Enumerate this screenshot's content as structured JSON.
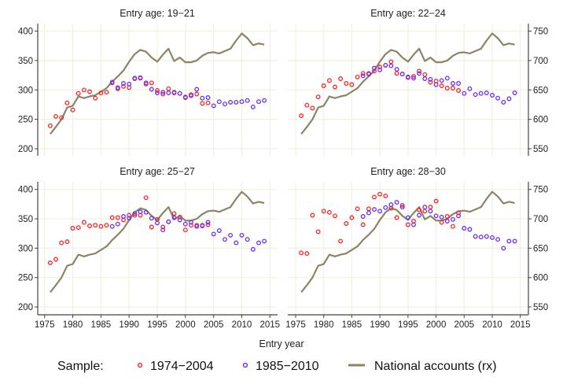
{
  "chart_data": {
    "type": "scatter",
    "xlabel": "Entry year",
    "legend": {
      "position": "bottom",
      "title": "Sample:",
      "entries": [
        {
          "label": "1974−2004",
          "kind": "marker",
          "color": "#ff2222"
        },
        {
          "label": "1985−2010",
          "kind": "marker",
          "color": "#6a2bff"
        },
        {
          "label": "National accounts (rx)",
          "kind": "line",
          "color": "#8b8467"
        }
      ]
    },
    "colors": {
      "sample_1974_2004": "#ff2222",
      "sample_1985_2010": "#6a2bff",
      "national_accounts": "#8b8467"
    },
    "x_ticks": [
      1975,
      1980,
      1985,
      1990,
      1995,
      2000,
      2005,
      2010,
      2015
    ],
    "xlim": [
      1975,
      2015
    ],
    "left_axis": {
      "ticks": [
        200,
        250,
        300,
        350,
        400
      ],
      "ylim": [
        200,
        400
      ]
    },
    "right_axis": {
      "ticks": [
        550,
        600,
        650,
        700,
        750
      ],
      "ylim": [
        550,
        750
      ],
      "note": "National accounts (rx)"
    },
    "national_accounts": {
      "x": [
        1976,
        1977,
        1978,
        1979,
        1980,
        1981,
        1982,
        1983,
        1984,
        1985,
        1986,
        1987,
        1988,
        1989,
        1990,
        1991,
        1992,
        1993,
        1994,
        1995,
        1996,
        1997,
        1998,
        1999,
        2000,
        2001,
        2002,
        2003,
        2004,
        2005,
        2006,
        2007,
        2008,
        2009,
        2010,
        2011,
        2012,
        2013,
        2014
      ],
      "left_scale_values": [
        225,
        237,
        250,
        270,
        273,
        289,
        286,
        289,
        291,
        297,
        303,
        314,
        323,
        333,
        348,
        361,
        368,
        365,
        355,
        348,
        360,
        370,
        349,
        355,
        347,
        347,
        350,
        358,
        363,
        364,
        362,
        366,
        370,
        384,
        396,
        388,
        376,
        379,
        377
      ]
    },
    "panels": [
      {
        "title": "Entry age: 19−21",
        "axis": "left",
        "series": [
          {
            "name": "1974−2004",
            "x": [
              1976,
              1977,
              1978,
              1979,
              1980,
              1981,
              1982,
              1983,
              1984,
              1985,
              1986,
              1987,
              1988,
              1989,
              1990,
              1991,
              1992,
              1993,
              1994,
              1995,
              1996,
              1997,
              1998,
              1999,
              2000,
              2001,
              2002,
              2003,
              2004
            ],
            "y": [
              239,
              255,
              253,
              278,
              266,
              294,
              300,
              297,
              286,
              295,
              296,
              312,
              302,
              306,
              304,
              319,
              321,
              310,
              312,
              299,
              293,
              302,
              295,
              294,
              288,
              292,
              293,
              277,
              278
            ]
          },
          {
            "name": "1985−2010",
            "x": [
              1987,
              1988,
              1989,
              1990,
              1991,
              1992,
              1993,
              1994,
              1995,
              1996,
              1997,
              1998,
              1999,
              2000,
              2001,
              2002,
              2003,
              2004,
              2005,
              2006,
              2007,
              2008,
              2009,
              2010,
              2011,
              2012,
              2013,
              2014
            ],
            "y": [
              313,
              304,
              311,
              310,
              320,
              320,
              312,
              301,
              295,
              296,
              295,
              296,
              294,
              287,
              290,
              301,
              286,
              287,
              273,
              280,
              276,
              279,
              279,
              280,
              282,
              271,
              280,
              282
            ]
          }
        ]
      },
      {
        "title": "Entry age: 22−24",
        "axis": "right",
        "series": [
          {
            "name": "1974−2004",
            "x": [
              1976,
              1977,
              1978,
              1979,
              1980,
              1981,
              1982,
              1983,
              1984,
              1985,
              1986,
              1987,
              1988,
              1989,
              1990,
              1991,
              1992,
              1993,
              1994,
              1995,
              1996,
              1997,
              1998,
              1999,
              2000,
              2001,
              2002,
              2003,
              2004
            ],
            "y": [
              606,
              624,
              619,
              638,
              657,
              666,
              655,
              669,
              661,
              659,
              672,
              678,
              678,
              682,
              689,
              692,
              698,
              678,
              677,
              671,
              673,
              682,
              676,
              663,
              665,
              657,
              653,
              653,
              649
            ]
          },
          {
            "name": "1985−2010",
            "x": [
              1987,
              1988,
              1989,
              1990,
              1991,
              1992,
              1993,
              1994,
              1995,
              1996,
              1997,
              1998,
              1999,
              2000,
              2001,
              2002,
              2003,
              2004,
              2005,
              2006,
              2007,
              2008,
              2009,
              2010,
              2011,
              2012,
              2013,
              2014
            ],
            "y": [
              674,
              677,
              687,
              684,
              692,
              691,
              685,
              677,
              672,
              670,
              678,
              669,
              668,
              659,
              666,
              670,
              661,
              661,
              644,
              652,
              642,
              644,
              645,
              641,
              636,
              629,
              635,
              645
            ]
          }
        ]
      },
      {
        "title": "Entry age: 25−27",
        "axis": "left",
        "series": [
          {
            "name": "1974−2004",
            "x": [
              1976,
              1977,
              1978,
              1979,
              1980,
              1981,
              1982,
              1983,
              1984,
              1985,
              1986,
              1987,
              1988,
              1989,
              1990,
              1991,
              1992,
              1993,
              1994,
              1995,
              1996,
              1997,
              1998,
              1999,
              2000,
              2001,
              2002,
              2003,
              2004
            ],
            "y": [
              275,
              281,
              309,
              311,
              334,
              335,
              344,
              338,
              339,
              337,
              339,
              352,
              352,
              348,
              356,
              356,
              356,
              386,
              336,
              349,
              336,
              345,
              359,
              353,
              331,
              339,
              339,
              339,
              340
            ]
          },
          {
            "name": "1985−2010",
            "x": [
              1987,
              1988,
              1989,
              1990,
              1991,
              1992,
              1993,
              1994,
              1995,
              1996,
              1997,
              1998,
              1999,
              2000,
              2001,
              2002,
              2003,
              2004,
              2005,
              2006,
              2007,
              2008,
              2009,
              2010,
              2011,
              2012,
              2013,
              2014
            ],
            "y": [
              337,
              341,
              354,
              351,
              359,
              362,
              361,
              351,
              343,
              331,
              345,
              352,
              348,
              341,
              344,
              337,
              338,
              344,
              324,
              330,
              315,
              322,
              309,
              322,
              315,
              298,
              309,
              312
            ]
          }
        ]
      },
      {
        "title": "Entry age: 28−30",
        "axis": "right",
        "series": [
          {
            "name": "1974−2004",
            "x": [
              1976,
              1977,
              1978,
              1979,
              1980,
              1981,
              1982,
              1983,
              1984,
              1985,
              1986,
              1987,
              1988,
              1989,
              1990,
              1991,
              1992,
              1993,
              1994,
              1995,
              1996,
              1997,
              1998,
              1999,
              2000,
              2001,
              2002,
              2003,
              2004
            ],
            "y": [
              642,
              641,
              706,
              678,
              713,
              711,
              705,
              662,
              692,
              702,
              717,
              690,
              717,
              737,
              742,
              739,
              718,
              702,
              723,
              690,
              696,
              715,
              713,
              720,
              730,
              694,
              704,
              687,
              710
            ]
          },
          {
            "name": "1985−2010",
            "x": [
              1987,
              1988,
              1989,
              1990,
              1991,
              1992,
              1993,
              1994,
              1995,
              1996,
              1997,
              1998,
              1999,
              2000,
              2001,
              2002,
              2003,
              2004,
              2005,
              2006,
              2007,
              2008,
              2009,
              2010,
              2011,
              2012,
              2013,
              2014
            ],
            "y": [
              704,
              710,
              716,
              713,
              719,
              724,
              728,
              720,
              702,
              690,
              706,
              720,
              713,
              705,
              703,
              696,
              699,
              705,
              684,
              682,
              670,
              669,
              670,
              668,
              665,
              650,
              662,
              662
            ]
          }
        ]
      }
    ]
  }
}
